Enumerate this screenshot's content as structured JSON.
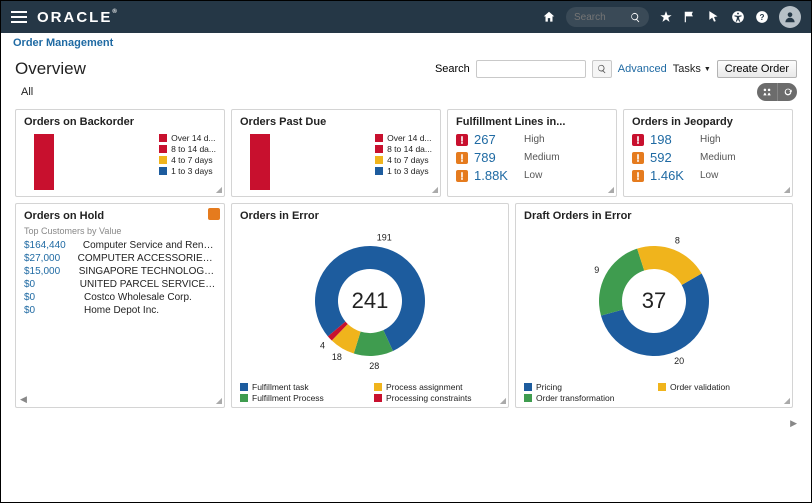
{
  "topbar": {
    "logo": "ORACLE",
    "search_placeholder": "Search"
  },
  "breadcrumb": "Order Management",
  "overview_label": "Overview",
  "head": {
    "search_label": "Search",
    "advanced_label": "Advanced",
    "tasks_label": "Tasks",
    "create_order_label": "Create Order"
  },
  "all_label": "All",
  "colors": {
    "blue": "#1d5c9e",
    "green": "#3f9c4f",
    "yellow": "#f0b41c",
    "red": "#c8102e",
    "orange_badge": "#e57b1e",
    "red_badge": "#c8102e"
  },
  "cards": {
    "backorder": {
      "title": "Orders on Backorder",
      "legend": [
        {
          "color": "#c8102e",
          "label": "Over 14 d..."
        },
        {
          "color": "#c8102e",
          "label": "8 to 14 da..."
        },
        {
          "color": "#f0b41c",
          "label": "4 to 7 days"
        },
        {
          "color": "#1d5c9e",
          "label": "1 to 3 days"
        }
      ]
    },
    "pastdue": {
      "title": "Orders Past Due",
      "legend": [
        {
          "color": "#c8102e",
          "label": "Over 14 d..."
        },
        {
          "color": "#c8102e",
          "label": "8 to 14 da..."
        },
        {
          "color": "#f0b41c",
          "label": "4 to 7 days"
        },
        {
          "color": "#1d5c9e",
          "label": "1 to 3 days"
        }
      ]
    },
    "fulfillment": {
      "title": "Fulfillment Lines in...",
      "rows": [
        {
          "badge": "#c8102e",
          "value": "267",
          "label": "High"
        },
        {
          "badge": "#e57b1e",
          "value": "789",
          "label": "Medium"
        },
        {
          "badge": "#e57b1e",
          "value": "1.88K",
          "label": "Low"
        }
      ]
    },
    "jeopardy": {
      "title": "Orders in Jeopardy",
      "rows": [
        {
          "badge": "#c8102e",
          "value": "198",
          "label": "High"
        },
        {
          "badge": "#e57b1e",
          "value": "592",
          "label": "Medium"
        },
        {
          "badge": "#e57b1e",
          "value": "1.46K",
          "label": "Low"
        }
      ]
    },
    "onhold": {
      "title": "Orders on Hold",
      "subtitle": "Top Customers by Value",
      "rows": [
        {
          "value": "$164,440",
          "name": "Computer Service and Rentals"
        },
        {
          "value": "$27,000",
          "name": "COMPUTER ACCESSORIES CO..."
        },
        {
          "value": "$15,000",
          "name": "SINGAPORE TECHNOLOGIES ..."
        },
        {
          "value": "$0",
          "name": "UNITED PARCEL SERVICE, INC"
        },
        {
          "value": "$0",
          "name": "Costco Wholesale Corp."
        },
        {
          "value": "$0",
          "name": "Home Depot Inc."
        }
      ]
    },
    "orders_error": {
      "title": "Orders in Error",
      "total": "241",
      "slices": [
        {
          "label": "191",
          "value": 191,
          "color": "#1d5c9e"
        },
        {
          "label": "28",
          "value": 28,
          "color": "#3f9c4f"
        },
        {
          "label": "18",
          "value": 18,
          "color": "#f0b41c"
        },
        {
          "label": "4",
          "value": 4,
          "color": "#c8102e"
        }
      ],
      "legend": [
        {
          "color": "#1d5c9e",
          "label": "Fulfillment task"
        },
        {
          "color": "#f0b41c",
          "label": "Process assignment"
        },
        {
          "color": "#3f9c4f",
          "label": "Fulfillment Process"
        },
        {
          "color": "#c8102e",
          "label": "Processing constraints"
        }
      ]
    },
    "draft_error": {
      "title": "Draft Orders in Error",
      "total": "37",
      "slices": [
        {
          "label": "20",
          "value": 20,
          "color": "#1d5c9e"
        },
        {
          "label": "9",
          "value": 9,
          "color": "#3f9c4f"
        },
        {
          "label": "8",
          "value": 8,
          "color": "#f0b41c"
        }
      ],
      "legend": [
        {
          "color": "#1d5c9e",
          "label": "Pricing"
        },
        {
          "color": "#f0b41c",
          "label": "Order validation"
        },
        {
          "color": "#3f9c4f",
          "label": "Order transformation"
        }
      ]
    }
  }
}
